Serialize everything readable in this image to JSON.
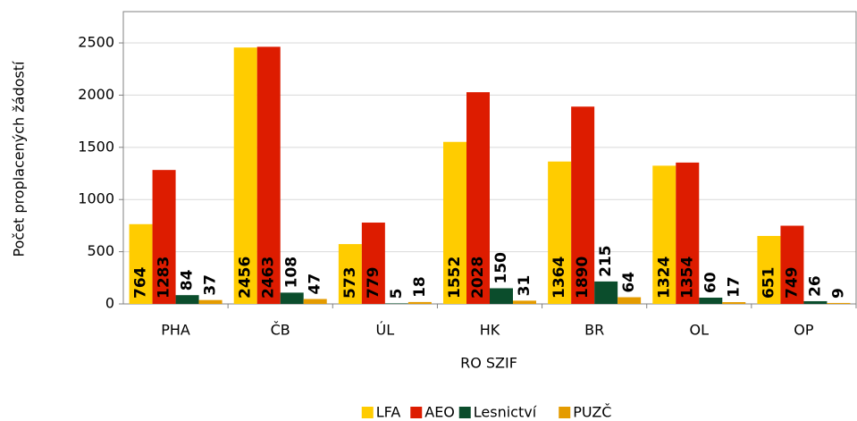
{
  "chart_data": {
    "type": "bar",
    "categories": [
      "PHA",
      "ČB",
      "ÚL",
      "HK",
      "BR",
      "OL",
      "OP"
    ],
    "series": [
      {
        "name": "LFA",
        "color": "#ffcc00",
        "values": [
          764,
          2456,
          573,
          1552,
          1364,
          1324,
          651
        ]
      },
      {
        "name": "AEO",
        "color": "#dd1c00",
        "values": [
          1283,
          2463,
          779,
          2028,
          1890,
          1354,
          749
        ]
      },
      {
        "name": "Lesnictví",
        "color": "#0b4d2c",
        "values": [
          84,
          108,
          5,
          150,
          215,
          60,
          26
        ]
      },
      {
        "name": "PUZČ",
        "color": "#e49b00",
        "values": [
          37,
          47,
          18,
          31,
          64,
          17,
          9
        ]
      }
    ],
    "xlabel": "RO SZIF",
    "ylabel": "Počet proplacených žádostí",
    "ylim": [
      0,
      2800
    ],
    "yticks": [
      0,
      500,
      1000,
      1500,
      2000,
      2500
    ],
    "grid": true
  }
}
